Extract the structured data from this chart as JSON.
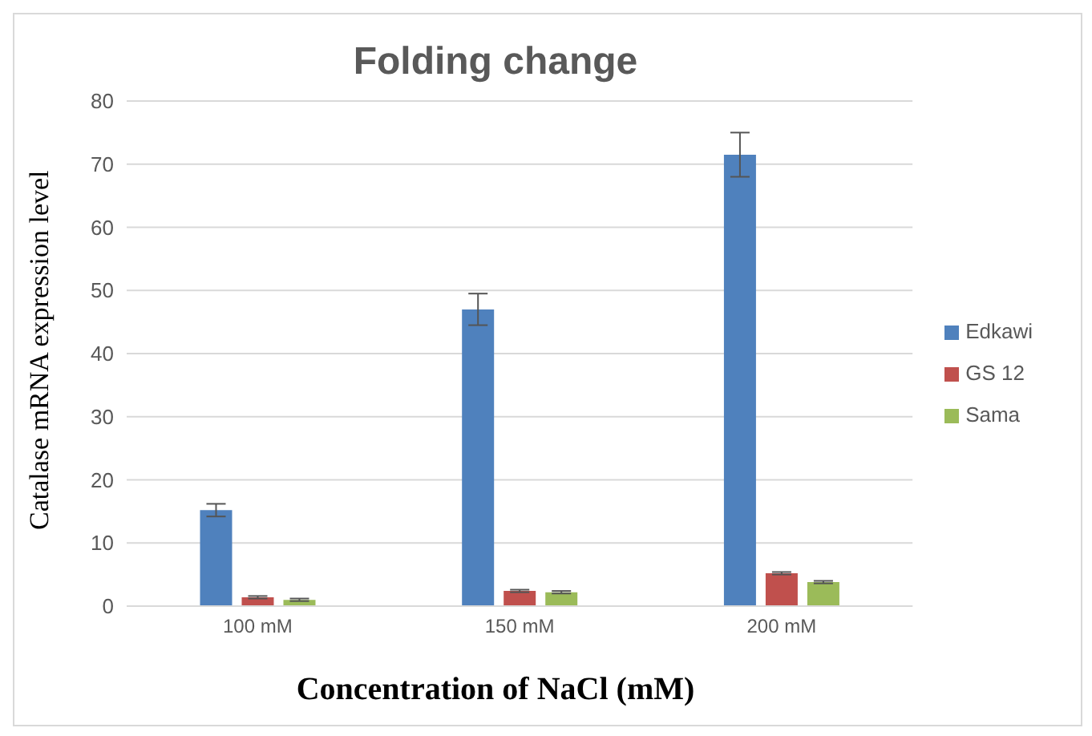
{
  "chart_data": {
    "type": "bar",
    "title": "Folding change",
    "xlabel": "Concentration of NaCl (mM)",
    "ylabel": "Catalase mRNA expression level",
    "categories": [
      "100 mM",
      "150 mM",
      "200 mM"
    ],
    "series": [
      {
        "name": "Edkawi",
        "color": "#4f81bd",
        "values": [
          15.2,
          47,
          71.5
        ],
        "errors": [
          1,
          2.5,
          3.5
        ]
      },
      {
        "name": "GS 12",
        "color": "#c0504d",
        "values": [
          1.4,
          2.4,
          5.2
        ],
        "errors": [
          0.2,
          0.2,
          0.2
        ]
      },
      {
        "name": "Sama",
        "color": "#9bbb59",
        "values": [
          1,
          2.2,
          3.8
        ],
        "errors": [
          0.2,
          0.2,
          0.2
        ]
      }
    ],
    "ylim": [
      0,
      80
    ],
    "yticks": [
      0,
      10,
      20,
      30,
      40,
      50,
      60,
      70,
      80
    ],
    "grid": "y",
    "legend": "right"
  }
}
